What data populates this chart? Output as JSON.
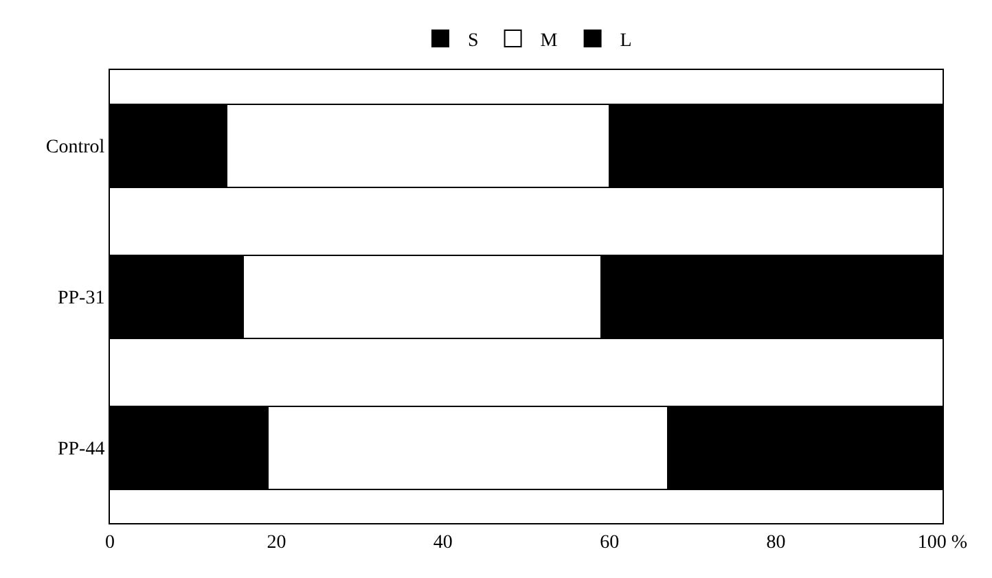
{
  "chart_data": {
    "type": "bar",
    "orientation": "horizontal",
    "stacked": true,
    "categories": [
      "Control",
      "PP-31",
      "PP-44"
    ],
    "series": [
      {
        "name": "S",
        "color": "#000000",
        "values": [
          14,
          16,
          19
        ]
      },
      {
        "name": "M",
        "color": "#ffffff",
        "values": [
          46,
          43,
          48
        ]
      },
      {
        "name": "L",
        "color": "#000000",
        "values": [
          40,
          41,
          33
        ]
      }
    ],
    "xlim": [
      0,
      100
    ],
    "xticks": [
      0,
      20,
      40,
      60,
      80,
      {
        "value": 100,
        "label": "100 %"
      }
    ],
    "legend": "top"
  }
}
